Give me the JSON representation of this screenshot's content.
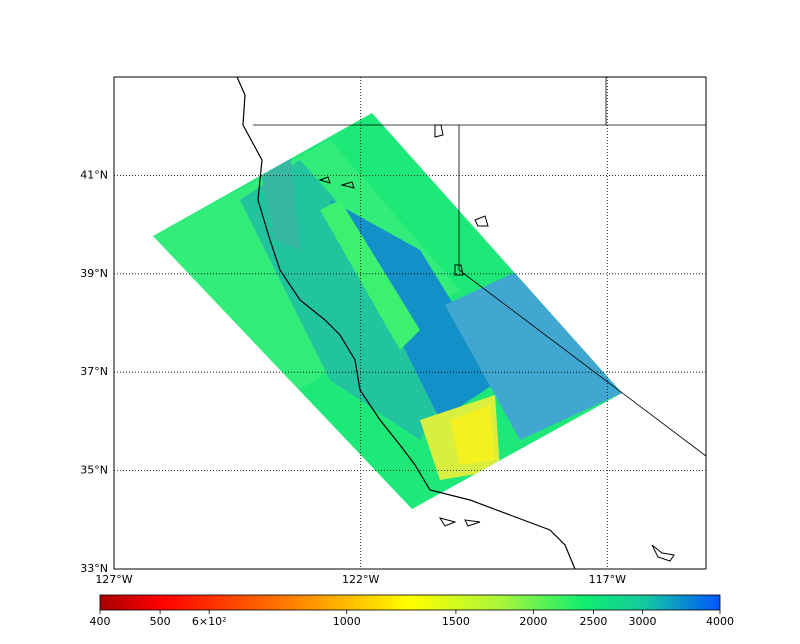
{
  "map": {
    "xlim": [
      -127,
      -115
    ],
    "ylim": [
      33,
      43
    ],
    "xticks": [
      {
        "value": -127,
        "label": "127°W"
      },
      {
        "value": -122,
        "label": "122°W"
      },
      {
        "value": -117,
        "label": "117°W"
      }
    ],
    "yticks": [
      {
        "value": 33,
        "label": "33°N"
      },
      {
        "value": 35,
        "label": "35°N"
      },
      {
        "value": 37,
        "label": "37°N"
      },
      {
        "value": 39,
        "label": "39°N"
      },
      {
        "value": 41,
        "label": "41°N"
      }
    ],
    "grid": true
  },
  "colorbar": {
    "range": [
      400,
      4000
    ],
    "scale": "log",
    "ticks": [
      400,
      500,
      {
        "value": 600,
        "label": "6×10²"
      },
      1000,
      1500,
      2000,
      2500,
      3000,
      4000
    ]
  }
}
